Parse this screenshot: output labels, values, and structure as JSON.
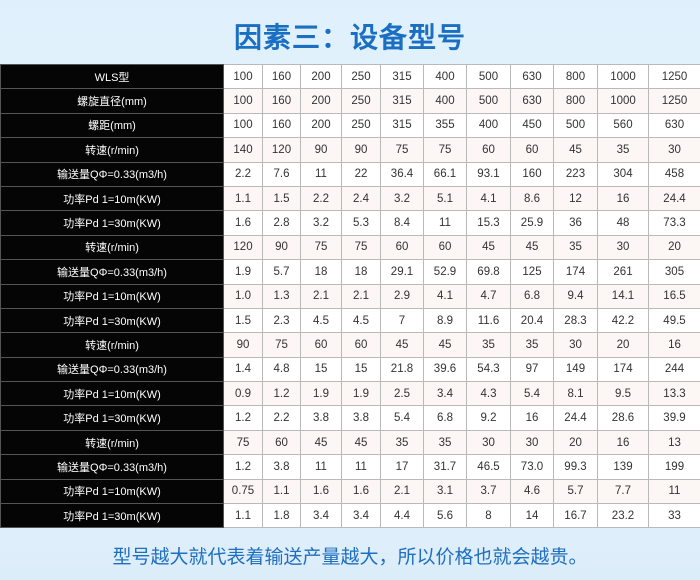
{
  "title": "因素三：设备型号",
  "footer": "型号越大就代表着输送产量越大，所以价格也就会越贵。",
  "rows": [
    {
      "label": "WLS型",
      "values": [
        "100",
        "160",
        "200",
        "250",
        "315",
        "400",
        "500",
        "630",
        "800",
        "1000",
        "1250"
      ]
    },
    {
      "label": "螺旋直径(mm)",
      "values": [
        "100",
        "160",
        "200",
        "250",
        "315",
        "400",
        "500",
        "630",
        "800",
        "1000",
        "1250"
      ]
    },
    {
      "label": "螺距(mm)",
      "values": [
        "100",
        "160",
        "200",
        "250",
        "315",
        "355",
        "400",
        "450",
        "500",
        "560",
        "630"
      ]
    },
    {
      "label": "转速(r/min)",
      "values": [
        "140",
        "120",
        "90",
        "90",
        "75",
        "75",
        "60",
        "60",
        "45",
        "35",
        "30"
      ]
    },
    {
      "label": "输送量QΦ=0.33(m3/h)",
      "values": [
        "2.2",
        "7.6",
        "11",
        "22",
        "36.4",
        "66.1",
        "93.1",
        "160",
        "223",
        "304",
        "458"
      ]
    },
    {
      "label": "功率Pd 1=10m(KW)",
      "values": [
        "1.1",
        "1.5",
        "2.2",
        "2.4",
        "3.2",
        "5.1",
        "4.1",
        "8.6",
        "12",
        "16",
        "24.4"
      ]
    },
    {
      "label": "功率Pd 1=30m(KW)",
      "values": [
        "1.6",
        "2.8",
        "3.2",
        "5.3",
        "8.4",
        "11",
        "15.3",
        "25.9",
        "36",
        "48",
        "73.3"
      ]
    },
    {
      "label": "转速(r/min)",
      "values": [
        "120",
        "90",
        "75",
        "75",
        "60",
        "60",
        "45",
        "45",
        "35",
        "30",
        "20"
      ]
    },
    {
      "label": "输送量QΦ=0.33(m3/h)",
      "values": [
        "1.9",
        "5.7",
        "18",
        "18",
        "29.1",
        "52.9",
        "69.8",
        "125",
        "174",
        "261",
        "305"
      ]
    },
    {
      "label": "功率Pd 1=10m(KW)",
      "values": [
        "1.0",
        "1.3",
        "2.1",
        "2.1",
        "2.9",
        "4.1",
        "4.7",
        "6.8",
        "9.4",
        "14.1",
        "16.5"
      ]
    },
    {
      "label": "功率Pd 1=30m(KW)",
      "values": [
        "1.5",
        "2.3",
        "4.5",
        "4.5",
        "7",
        "8.9",
        "11.6",
        "20.4",
        "28.3",
        "42.2",
        "49.5"
      ]
    },
    {
      "label": "转速(r/min)",
      "values": [
        "90",
        "75",
        "60",
        "60",
        "45",
        "45",
        "35",
        "35",
        "30",
        "20",
        "16"
      ]
    },
    {
      "label": "输送量QΦ=0.33(m3/h)",
      "values": [
        "1.4",
        "4.8",
        "15",
        "15",
        "21.8",
        "39.6",
        "54.3",
        "97",
        "149",
        "174",
        "244"
      ]
    },
    {
      "label": "功率Pd 1=10m(KW)",
      "values": [
        "0.9",
        "1.2",
        "1.9",
        "1.9",
        "2.5",
        "3.4",
        "4.3",
        "5.4",
        "8.1",
        "9.5",
        "13.3"
      ]
    },
    {
      "label": "功率Pd 1=30m(KW)",
      "values": [
        "1.2",
        "2.2",
        "3.8",
        "3.8",
        "5.4",
        "6.8",
        "9.2",
        "16",
        "24.4",
        "28.6",
        "39.9"
      ]
    },
    {
      "label": "转速(r/min)",
      "values": [
        "75",
        "60",
        "45",
        "45",
        "35",
        "35",
        "30",
        "30",
        "20",
        "16",
        "13"
      ]
    },
    {
      "label": "输送量QΦ=0.33(m3/h)",
      "values": [
        "1.2",
        "3.8",
        "11",
        "11",
        "17",
        "31.7",
        "46.5",
        "73.0",
        "99.3",
        "139",
        "199"
      ]
    },
    {
      "label": "功率Pd 1=10m(KW)",
      "values": [
        "0.75",
        "1.1",
        "1.6",
        "1.6",
        "2.1",
        "3.1",
        "3.7",
        "4.6",
        "5.7",
        "7.7",
        "11"
      ]
    },
    {
      "label": "功率Pd 1=30m(KW)",
      "values": [
        "1.1",
        "1.8",
        "3.4",
        "3.4",
        "4.4",
        "5.6",
        "8",
        "14",
        "16.7",
        "23.2",
        "33"
      ]
    }
  ]
}
